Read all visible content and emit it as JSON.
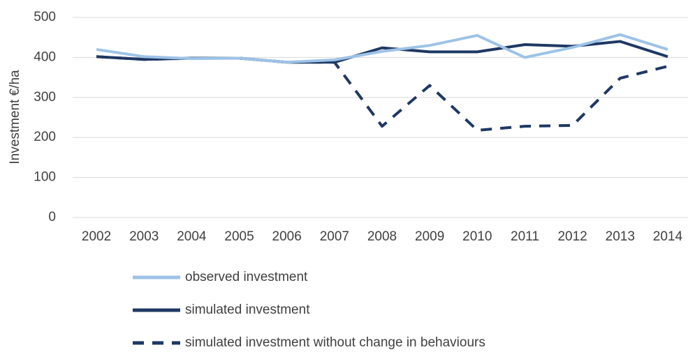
{
  "chart_data": {
    "type": "line",
    "y_label": "Investment €/ha",
    "categories": [
      "2002",
      "2003",
      "2004",
      "2005",
      "2006",
      "2007",
      "2008",
      "2009",
      "2010",
      "2011",
      "2012",
      "2013",
      "2014"
    ],
    "series": [
      {
        "name": "observed investment",
        "color": "#9dc3e6",
        "dashed": false,
        "values": [
          420,
          402,
          397,
          398,
          388,
          394,
          415,
          430,
          455,
          400,
          425,
          457,
          420
        ]
      },
      {
        "name": "simulated investment",
        "color": "#1f3864",
        "dashed": false,
        "values": [
          402,
          395,
          398,
          398,
          388,
          388,
          424,
          414,
          414,
          432,
          428,
          440,
          402
        ]
      },
      {
        "name": "simulated investment without change in behaviours",
        "color": "#1f3864",
        "dashed": true,
        "values": [
          402,
          395,
          398,
          398,
          388,
          388,
          228,
          330,
          218,
          228,
          230,
          348,
          378
        ]
      }
    ],
    "ylim": [
      0,
      500
    ],
    "yticks": [
      0,
      100,
      200,
      300,
      400,
      500
    ],
    "grid": true,
    "legend": "bottom"
  }
}
